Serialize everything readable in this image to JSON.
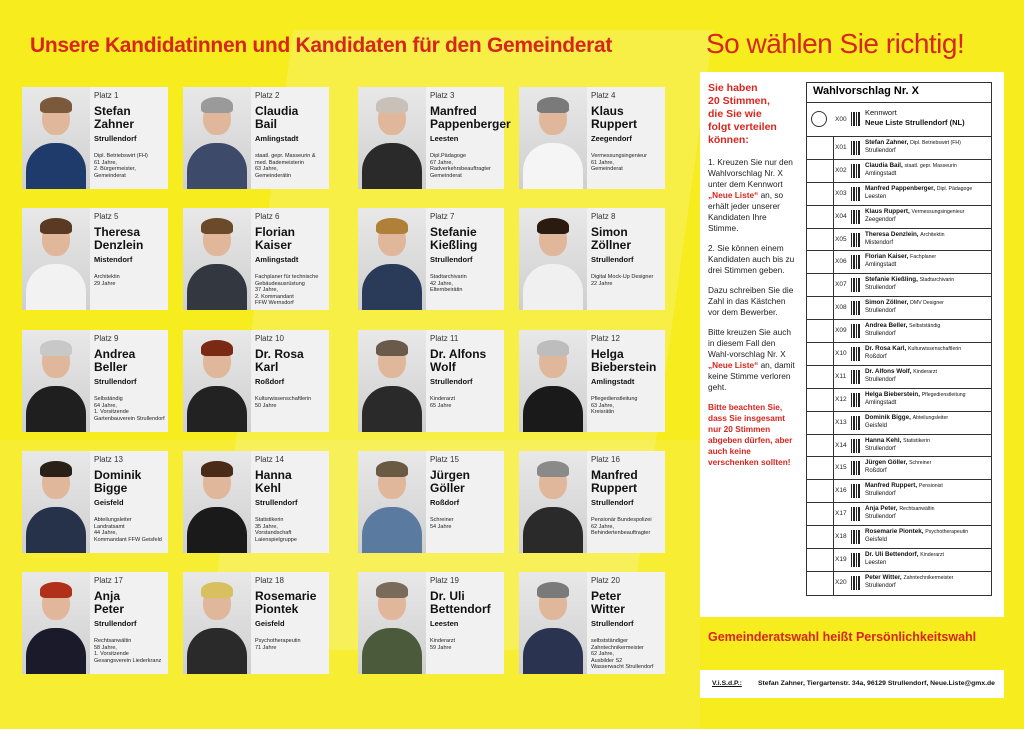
{
  "header": {
    "title": "Unsere Kandidatinnen und Kandidaten für den Gemeinderat",
    "right_title": "So wählen Sie richtig!"
  },
  "candidates": [
    {
      "platz": "Platz 1",
      "name": "Stefan\nZahner",
      "ort": "Strullendorf",
      "desc": "Dipl. Betriebswirt (FH)\n61 Jahre,\n2. Bürgermeister,\nGemeinderat",
      "hair": "#7a5a3a",
      "shirt": "#1f3b6b"
    },
    {
      "platz": "Platz 2",
      "name": "Claudia\nBail",
      "ort": "Amlingstadt",
      "desc": "staatl. gepr. Masseurin &\nmed. Bademeisterin\n63 Jahre,\nGemeinderätin",
      "hair": "#9a9a9a",
      "shirt": "#3d4a6a"
    },
    {
      "platz": "Platz 3",
      "name": "Manfred\nPappenberger",
      "ort": "Leesten",
      "desc": "Dipl.Pädagoge\n67 Jahre,\nRadverkehrsbeauftragter\nGemeinderat",
      "hair": "#c9c1b8",
      "shirt": "#2a2a2a"
    },
    {
      "platz": "Platz 4",
      "name": "Klaus\nRuppert",
      "ort": "Zeegendorf",
      "desc": "Vermessungsingenieur\n61 Jahre,\nGemeinderat",
      "hair": "#7a7a7a",
      "shirt": "#f5f5f5"
    },
    {
      "platz": "Platz 5",
      "name": "Theresa\nDenzlein",
      "ort": "Mistendorf",
      "desc": "Architektin\n29 Jahre",
      "hair": "#5a3a22",
      "shirt": "#f2f2f2"
    },
    {
      "platz": "Platz 6",
      "name": "Florian\nKaiser",
      "ort": "Amlingstadt",
      "desc": "Fachplaner für technische\nGebäudeausrüstung\n37 Jahre,\n2. Kommandant\nFFW Wernsdorf",
      "hair": "#6a4a2a",
      "shirt": "#333840"
    },
    {
      "platz": "Platz 7",
      "name": "Stefanie\nKießling",
      "ort": "Strullendorf",
      "desc": "Stadtarchivarin\n42 Jahre,\nElternbeirätin",
      "hair": "#b0803a",
      "shirt": "#2a3b5a"
    },
    {
      "platz": "Platz 8",
      "name": "Simon\nZöllner",
      "ort": "Strullendorf",
      "desc": "Digital Mock-Up Designer\n22 Jahre",
      "hair": "#2a1a10",
      "shirt": "#f0f0f0"
    },
    {
      "platz": "Platz 9",
      "name": "Andrea\nBeller",
      "ort": "Strullendorf",
      "desc": "Selbständig\n64 Jahre,\n1. Vorsitzende\nGartenbauverein Strullendorf",
      "hair": "#c8c8c8",
      "shirt": "#1f1f1f"
    },
    {
      "platz": "Platz 10",
      "name": "Dr. Rosa\nKarl",
      "ort": "Roßdorf",
      "desc": "Kulturwissenschaftlerin\n50 Jahre",
      "hair": "#7a2a14",
      "shirt": "#222222"
    },
    {
      "platz": "Platz 11",
      "name": "Dr. Alfons\nWolf",
      "ort": "Strullendorf",
      "desc": "Kinderarzt\n65 Jahre",
      "hair": "#6a5a4a",
      "shirt": "#2a2a2a"
    },
    {
      "platz": "Platz 12",
      "name": "Helga\nBieberstein",
      "ort": "Amlingstadt",
      "desc": "Pflegedienstleitung\n63 Jahre,\nKreisrätin",
      "hair": "#bdbdbd",
      "shirt": "#1a1a1a"
    },
    {
      "platz": "Platz 13",
      "name": "Dominik\nBigge",
      "ort": "Geisfeld",
      "desc": "Abteilungsleiter\nLandratsamt\n44 Jahre,\nKommandant FFW Geisfeld",
      "hair": "#2a2018",
      "shirt": "#25324a"
    },
    {
      "platz": "Platz 14",
      "name": "Hanna\nKehl",
      "ort": "Strullendorf",
      "desc": "Statistikerin\n35 Jahre,\nVorstandschaft\nLaienspielgruppe",
      "hair": "#4a2a18",
      "shirt": "#1a1a1a"
    },
    {
      "platz": "Platz 15",
      "name": "Jürgen\nGöller",
      "ort": "Roßdorf",
      "desc": "Schreiner\n54 Jahre",
      "hair": "#6a5a44",
      "shirt": "#5a7aa0"
    },
    {
      "platz": "Platz 16",
      "name": "Manfred\nRuppert",
      "ort": "Strullendorf",
      "desc": "Pensionär Bundespolizei\n62 Jahre,\nBehindertenbeauftragter",
      "hair": "#8a8a8a",
      "shirt": "#2a2a2a"
    },
    {
      "platz": "Platz 17",
      "name": "Anja\nPeter",
      "ort": "Strullendorf",
      "desc": "Rechtsanwältin\n58 Jahre,\n1. Vorsitzende\nGesangsverein Liederkranz",
      "hair": "#b0301a",
      "shirt": "#1a1a2a"
    },
    {
      "platz": "Platz 18",
      "name": "Rosemarie\nPiontek",
      "ort": "Geisfeld",
      "desc": "Psychotherapeutin\n71 Jahre",
      "hair": "#d8c060",
      "shirt": "#2a2a2a"
    },
    {
      "platz": "Platz 19",
      "name": "Dr. Uli\nBettendorf",
      "ort": "Leesten",
      "desc": "Kinderarzt\n59 Jahre",
      "hair": "#7a6a5a",
      "shirt": "#4a5a3a"
    },
    {
      "platz": "Platz 20",
      "name": "Peter\nWitter",
      "ort": "Strullendorf",
      "desc": "selbstständiger\nZahntechnikermeister\n62 Jahre,\nAusbilder S2\nWasserwacht Strullendorf",
      "hair": "#7a7a7a",
      "shirt": "#2a3350"
    }
  ],
  "instructions": {
    "heading": "Sie haben\n20 Stimmen,\ndie Sie wie\nfolgt verteilen\nkönnen:",
    "p1a": "1. Kreuzen Sie nur den Wahlvorschlag Nr. X unter dem Kennwort ",
    "p1b": "„Neue Liste“",
    "p1c": " an, so erhält jeder unserer Kandidaten Ihre Stimme.",
    "p2": "2. Sie können einem Kandidaten auch bis zu drei Stimmen geben.",
    "p3": "Dazu schreiben Sie die Zahl in das Kästchen vor dem Bewerber.",
    "p4a": "Bitte kreuzen Sie auch in diesem Fall den Wahl-vorschlag Nr. X ",
    "p4b": "„Neue Liste“",
    "p4c": " an, damit keine Stimme verloren geht.",
    "warning": "Bitte beachten Sie, dass Sie insgesamt nur 20 Stimmen abgeben dürfen, aber auch keine verschenken sollten!"
  },
  "ballot": {
    "title": "Wahlvorschlag Nr. X",
    "kennwort_code": "X00",
    "kennwort_label": "Kennwort",
    "kennwort_name": "Neue Liste Strullendorf (NL)",
    "rows": [
      {
        "code": "X01",
        "name": "Stefan Zahner,",
        "sub": "Dipl. Betriebswirt (FH)",
        "loc": "Strullendorf"
      },
      {
        "code": "X02",
        "name": "Claudia Bail,",
        "sub": "staatl. gepr. Masseurin",
        "loc": "Amlingstadt"
      },
      {
        "code": "X03",
        "name": "Manfred Pappenberger,",
        "sub": "Dipl. Pädagoge",
        "loc": "Leesten"
      },
      {
        "code": "X04",
        "name": "Klaus Ruppert,",
        "sub": "Vermessungsingenieur",
        "loc": "Zeegendorf"
      },
      {
        "code": "X05",
        "name": "Theresa Denzlein,",
        "sub": "Architektin",
        "loc": "Mistendorf"
      },
      {
        "code": "X06",
        "name": "Florian Kaiser,",
        "sub": "Fachplaner",
        "loc": "Amlingstadt"
      },
      {
        "code": "X07",
        "name": "Stefanie Kießling,",
        "sub": "Stadtarchivarin",
        "loc": "Strullendorf"
      },
      {
        "code": "X08",
        "name": "Simon Zöllner,",
        "sub": "DMV Designer",
        "loc": "Strullendorf"
      },
      {
        "code": "X09",
        "name": "Andrea Beller,",
        "sub": "Selbstständig",
        "loc": "Strullendorf"
      },
      {
        "code": "X10",
        "name": "Dr. Rosa Karl,",
        "sub": "Kulturwissenschaftlerin",
        "loc": "Roßdorf"
      },
      {
        "code": "X11",
        "name": "Dr. Alfons Wolf,",
        "sub": "Kinderarzt",
        "loc": "Strullendorf"
      },
      {
        "code": "X12",
        "name": "Helga Bieberstein,",
        "sub": "Pflegedienstleitung",
        "loc": "Amlingstadt"
      },
      {
        "code": "X13",
        "name": "Dominik Bigge,",
        "sub": "Abteilungsleiter",
        "loc": "Geisfeld"
      },
      {
        "code": "X14",
        "name": "Hanna Kehl,",
        "sub": "Statistikerin",
        "loc": "Strullendorf"
      },
      {
        "code": "X15",
        "name": "Jürgen Göller,",
        "sub": "Schreiner",
        "loc": "Roßdorf"
      },
      {
        "code": "X16",
        "name": "Manfred Ruppert,",
        "sub": "Pensionist",
        "loc": "Strullendorf"
      },
      {
        "code": "X17",
        "name": "Anja Peter,",
        "sub": "Rechtsanwältin",
        "loc": "Strullendorf"
      },
      {
        "code": "X18",
        "name": "Rosemarie Piontek,",
        "sub": "Psychotherapeutin",
        "loc": "Geisfeld"
      },
      {
        "code": "X19",
        "name": "Dr. Uli Bettendorf,",
        "sub": "Kinderarzt",
        "loc": "Leesten"
      },
      {
        "code": "X20",
        "name": "Peter Witter,",
        "sub": "Zahntechnikermeister",
        "loc": "Strullendorf"
      }
    ]
  },
  "footer": {
    "slogan": "Gemeinderatswahl heißt Persönlichkeitswahl",
    "visdp_label": "V.i.S.d.P.:",
    "visdp_text": "Stefan Zahner, Tiergartenstr. 34a, 96129 Strullendorf, Neue.Liste@gmx.de"
  }
}
